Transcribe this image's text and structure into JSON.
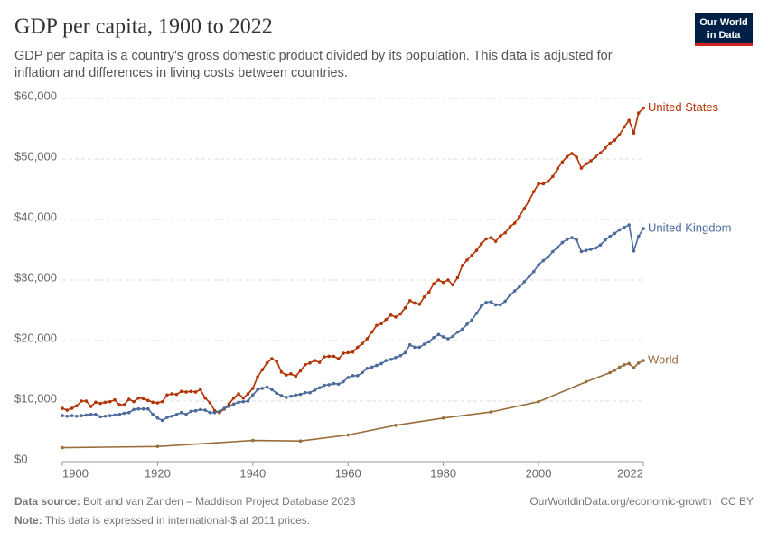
{
  "chart_data": {
    "type": "line",
    "title": "GDP per capita, 1900 to 2022",
    "subtitle": [
      "GDP per capita is a country's gross domestic product divided by its population. This data is adjusted for",
      "inflation and differences in living costs between countries."
    ],
    "x": [
      1900,
      1901,
      1902,
      1903,
      1904,
      1905,
      1906,
      1907,
      1908,
      1909,
      1910,
      1911,
      1912,
      1913,
      1914,
      1915,
      1916,
      1917,
      1918,
      1919,
      1920,
      1921,
      1922,
      1923,
      1924,
      1925,
      1926,
      1927,
      1928,
      1929,
      1930,
      1931,
      1932,
      1933,
      1934,
      1935,
      1936,
      1937,
      1938,
      1939,
      1940,
      1941,
      1942,
      1943,
      1944,
      1945,
      1946,
      1947,
      1948,
      1949,
      1950,
      1951,
      1952,
      1953,
      1954,
      1955,
      1956,
      1957,
      1958,
      1959,
      1960,
      1961,
      1962,
      1963,
      1964,
      1965,
      1966,
      1967,
      1968,
      1969,
      1970,
      1971,
      1972,
      1973,
      1974,
      1975,
      1976,
      1977,
      1978,
      1979,
      1980,
      1981,
      1982,
      1983,
      1984,
      1985,
      1986,
      1987,
      1988,
      1989,
      1990,
      1991,
      1992,
      1993,
      1994,
      1995,
      1996,
      1997,
      1998,
      1999,
      2000,
      2001,
      2002,
      2003,
      2004,
      2005,
      2006,
      2007,
      2008,
      2009,
      2010,
      2011,
      2012,
      2013,
      2014,
      2015,
      2016,
      2017,
      2018,
      2019,
      2020,
      2021,
      2022
    ],
    "series": [
      {
        "name": "United States",
        "color": "#b13507",
        "values": [
          8800,
          8500,
          8800,
          9200,
          10000,
          10000,
          9100,
          9800,
          9600,
          9800,
          9900,
          10200,
          9400,
          9400,
          10300,
          9900,
          10500,
          10400,
          10100,
          9800,
          9700,
          9900,
          11000,
          11200,
          11100,
          11600,
          11500,
          11600,
          11500,
          11900,
          10500,
          9700,
          8400,
          8100,
          8700,
          9500,
          10500,
          11200,
          10500,
          11200,
          12100,
          14000,
          15200,
          16300,
          17000,
          16600,
          14800,
          14300,
          14500,
          14100,
          15000,
          16000,
          16300,
          16700,
          16400,
          17300,
          17400,
          17400,
          17000,
          17900,
          18000,
          18100,
          18900,
          19500,
          20300,
          21400,
          22500,
          22800,
          23500,
          24200,
          23900,
          24400,
          25400,
          26600,
          26200,
          26000,
          27200,
          28000,
          29400,
          30000,
          29600,
          30000,
          29200,
          30400,
          32400,
          33300,
          34100,
          34900,
          36000,
          36800,
          37000,
          36400,
          37300,
          37800,
          38800,
          39400,
          40500,
          41800,
          43100,
          44600,
          45900,
          45900,
          46300,
          47100,
          48400,
          49500,
          50400,
          50900,
          50300,
          48500,
          49200,
          49700,
          50400,
          51000,
          51800,
          52600,
          53100,
          54000,
          55300,
          56400,
          54300,
          57600,
          58400
        ]
      },
      {
        "name": "United Kingdom",
        "color": "#4c6a9c",
        "values": [
          7600,
          7500,
          7600,
          7500,
          7600,
          7700,
          7800,
          7800,
          7400,
          7500,
          7600,
          7700,
          7800,
          8000,
          8100,
          8600,
          8700,
          8700,
          8700,
          7800,
          7200,
          6800,
          7300,
          7500,
          7800,
          8100,
          7800,
          8300,
          8400,
          8600,
          8500,
          8100,
          8100,
          8300,
          8800,
          9100,
          9500,
          9800,
          9900,
          10000,
          11000,
          11900,
          12100,
          12300,
          11900,
          11300,
          10900,
          10600,
          10800,
          11000,
          11100,
          11400,
          11400,
          11800,
          12200,
          12600,
          12700,
          12900,
          12800,
          13200,
          13900,
          14200,
          14200,
          14700,
          15400,
          15600,
          15900,
          16200,
          16700,
          16900,
          17200,
          17500,
          18000,
          19300,
          18900,
          18900,
          19400,
          19800,
          20500,
          21000,
          20600,
          20300,
          20700,
          21400,
          21900,
          22700,
          23400,
          24500,
          25700,
          26300,
          26400,
          25900,
          25900,
          26500,
          27500,
          28200,
          28900,
          29700,
          30600,
          31400,
          32500,
          33200,
          33800,
          34700,
          35400,
          36200,
          36700,
          37000,
          36600,
          34700,
          34900,
          35100,
          35300,
          35800,
          36600,
          37200,
          37700,
          38300,
          38700,
          39100,
          34800,
          37200,
          38500
        ]
      },
      {
        "name": "World",
        "color": "#996d39",
        "x": [
          1900,
          1920,
          1940,
          1950,
          1960,
          1970,
          1980,
          1990,
          2000,
          2010,
          2015,
          2016,
          2017,
          2018,
          2019,
          2020,
          2021,
          2022
        ],
        "values": [
          2300,
          2500,
          3500,
          3400,
          4400,
          6000,
          7200,
          8200,
          9900,
          13200,
          14700,
          15100,
          15600,
          16000,
          16200,
          15500,
          16300,
          16700
        ]
      }
    ],
    "xlim": [
      1900,
      2022
    ],
    "xticks": [
      1900,
      1920,
      1940,
      1960,
      1980,
      2000,
      2022
    ],
    "ylim": [
      0,
      60000
    ],
    "yticks": [
      {
        "value": 0,
        "label": "$0"
      },
      {
        "value": 10000,
        "label": "$10,000"
      },
      {
        "value": 20000,
        "label": "$20,000"
      },
      {
        "value": 30000,
        "label": "$30,000"
      },
      {
        "value": 40000,
        "label": "$40,000"
      },
      {
        "value": 50000,
        "label": "$50,000"
      },
      {
        "value": 60000,
        "label": "$60,000"
      }
    ],
    "grid": true
  },
  "logo": [
    "Our World",
    "in Data"
  ],
  "footer": {
    "source_label": "Data source:",
    "source": "Bolt and van Zanden – Maddison Project Database 2023",
    "url": "OurWorldinData.org/economic-growth | CC BY",
    "note_label": "Note:",
    "note": "This data is expressed in international-$ at 2011 prices."
  }
}
